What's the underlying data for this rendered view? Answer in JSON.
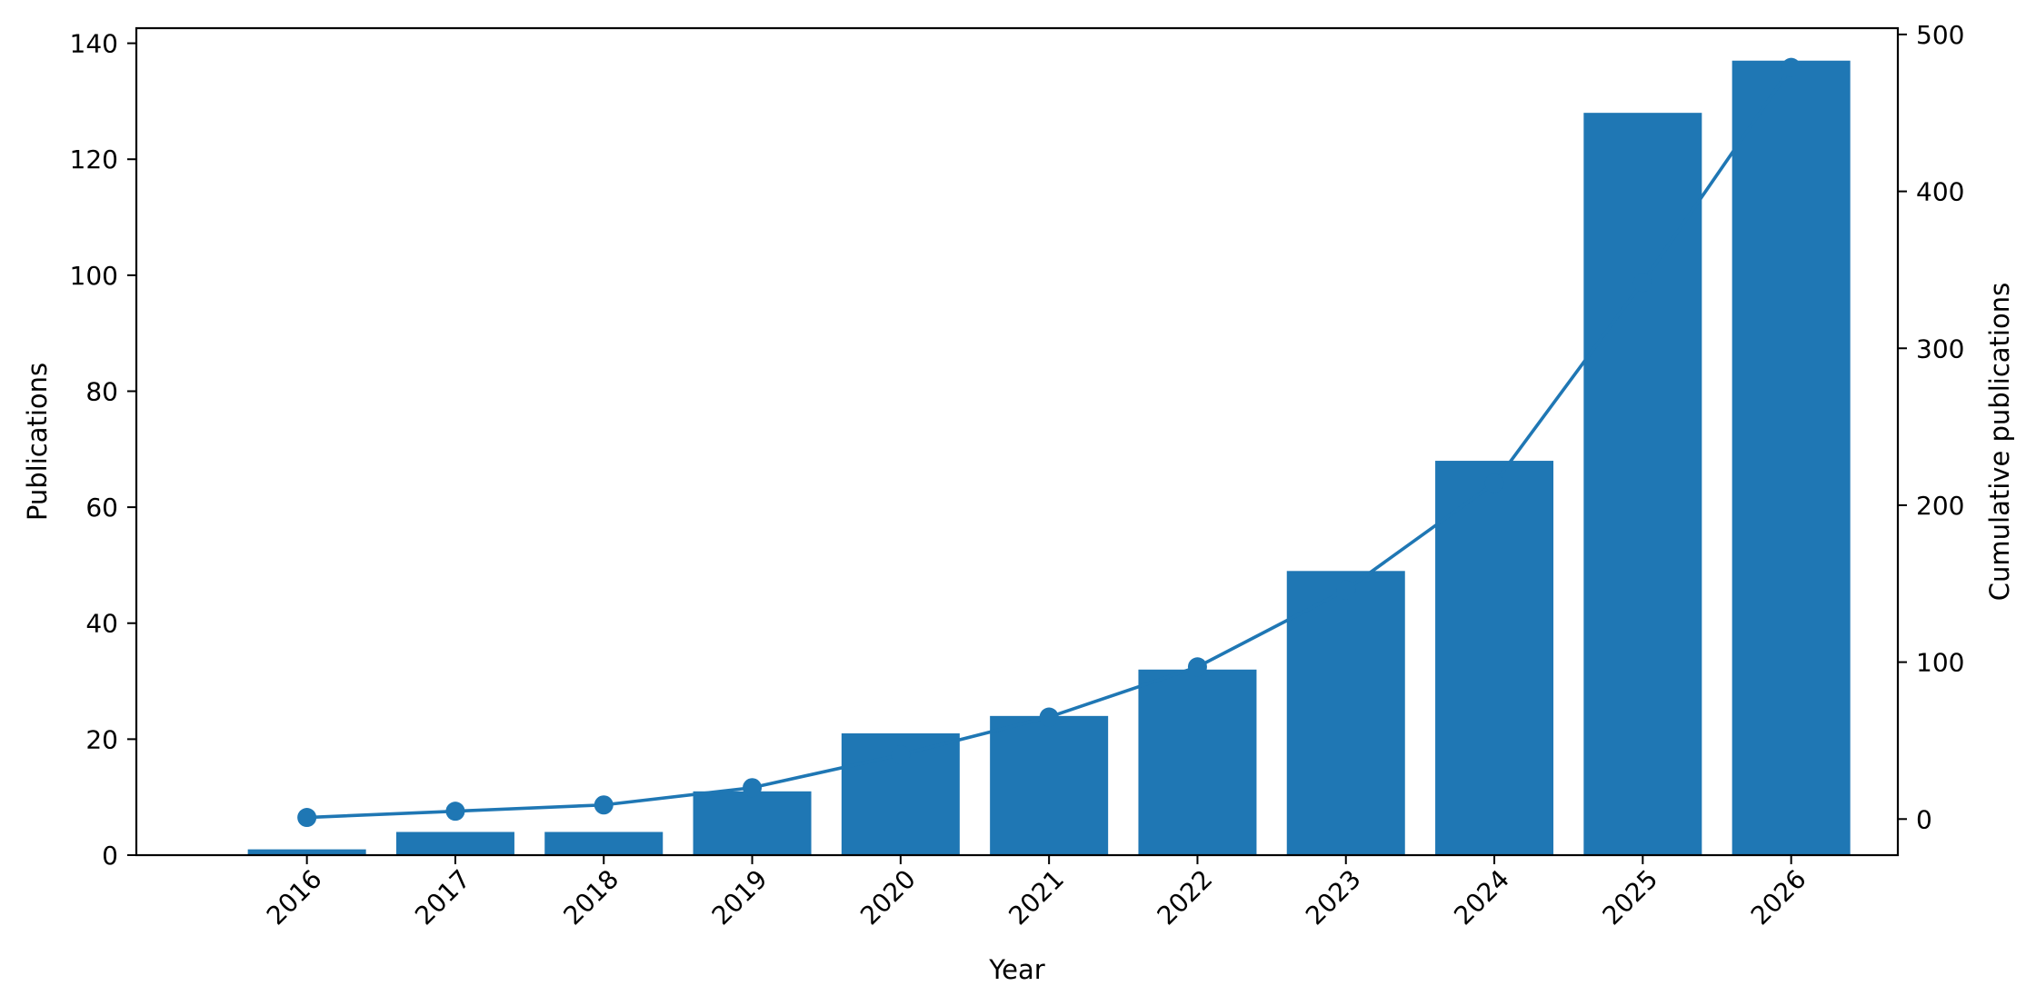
{
  "chart_data": {
    "type": "bar",
    "title": "",
    "xlabel": "Year",
    "ylabel": "Publications",
    "y2label": "Cumulative publications",
    "categories": [
      "2016",
      "2017",
      "2018",
      "2019",
      "2020",
      "2021",
      "2022",
      "2023",
      "2024",
      "2025",
      "2026"
    ],
    "series": [
      {
        "type": "bar",
        "axis": "left",
        "values": [
          1,
          4,
          4,
          11,
          21,
          24,
          32,
          49,
          68,
          128,
          137
        ]
      },
      {
        "type": "line",
        "axis": "right",
        "markers": true,
        "values": [
          1,
          5,
          9,
          20,
          41,
          65,
          97,
          146,
          214,
          342,
          479
        ]
      }
    ],
    "ylim": [
      0,
      142.6
    ],
    "y2lim": [
      -23,
      504
    ],
    "yticks": [
      0,
      20,
      40,
      60,
      80,
      100,
      120,
      140
    ],
    "y2ticks": [
      0,
      100,
      200,
      300,
      400,
      500
    ],
    "grid": false,
    "legend": "none",
    "colors": {
      "series": "#1f77b4",
      "axis": "#000000"
    }
  }
}
